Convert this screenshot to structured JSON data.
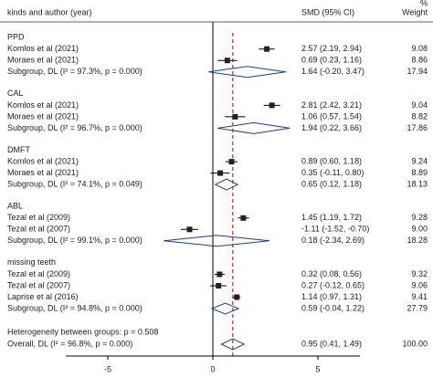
{
  "chart_data": {
    "type": "forest",
    "header": {
      "study": "kinds and author (year)",
      "effect": "SMD (95% CI)",
      "weight_unit": "%",
      "weight": "Weight"
    },
    "xlim": [
      -7,
      7
    ],
    "xticks": [
      -5,
      0,
      5
    ],
    "reference_line_color": "#c00000",
    "groups": [
      {
        "label": "PPD",
        "studies": [
          {
            "name": "Komlos et al (2021)",
            "values": [
              2.57,
              2.19,
              2.94
            ],
            "ci_label": "2.57 (2.19, 2.94)",
            "weight": "9.08"
          },
          {
            "name": "Moraes et al (2021)",
            "values": [
              0.69,
              0.23,
              1.16
            ],
            "ci_label": "0.69 (0.23, 1.16)",
            "weight": "8.86"
          }
        ],
        "subgroup": {
          "name": "Subgroup, DL (I² = 97.3%, p = 0.000)",
          "values": [
            1.64,
            -0.2,
            3.47
          ],
          "ci_label": "1.64 (-0.20, 3.47)",
          "weight": "17.94"
        }
      },
      {
        "label": "CAL",
        "studies": [
          {
            "name": "Komlos et al (2021)",
            "values": [
              2.81,
              2.42,
              3.21
            ],
            "ci_label": "2.81 (2.42, 3.21)",
            "weight": "9.04"
          },
          {
            "name": "Moraes et al (2021)",
            "values": [
              1.06,
              0.57,
              1.54
            ],
            "ci_label": "1.06 (0.57, 1.54)",
            "weight": "8.82"
          }
        ],
        "subgroup": {
          "name": "Subgroup, DL (I² = 96.7%, p = 0.000)",
          "values": [
            1.94,
            0.22,
            3.66
          ],
          "ci_label": "1.94 (0.22, 3.66)",
          "weight": "17.86"
        }
      },
      {
        "label": "DMFT",
        "studies": [
          {
            "name": "Komlos et al (2021)",
            "values": [
              0.89,
              0.6,
              1.18
            ],
            "ci_label": "0.89 (0.60, 1.18)",
            "weight": "9.24"
          },
          {
            "name": "Moraes et al (2021)",
            "values": [
              0.35,
              -0.11,
              0.8
            ],
            "ci_label": "0.35 (-0.11, 0.80)",
            "weight": "8.89"
          }
        ],
        "subgroup": {
          "name": "Subgroup, DL (I² = 74.1%, p = 0.049)",
          "values": [
            0.65,
            0.12,
            1.18
          ],
          "ci_label": "0.65 (0.12, 1.18)",
          "weight": "18.13"
        }
      },
      {
        "label": "ABL",
        "studies": [
          {
            "name": "Tezal et al (2009)",
            "values": [
              1.45,
              1.19,
              1.72
            ],
            "ci_label": "1.45 (1.19, 1.72)",
            "weight": "9.28"
          },
          {
            "name": "Tezal et al (2007)",
            "values": [
              -1.11,
              -1.52,
              -0.7
            ],
            "ci_label": "-1.11 (-1.52, -0.70)",
            "weight": "9.00"
          }
        ],
        "subgroup": {
          "name": "Subgroup, DL (I² = 99.1%, p = 0.000)",
          "values": [
            0.18,
            -2.34,
            2.69
          ],
          "ci_label": "0.18 (-2.34, 2.69)",
          "weight": "18.28"
        }
      },
      {
        "label": "missing teeth",
        "studies": [
          {
            "name": "Tezal et al (2009)",
            "values": [
              0.32,
              0.08,
              0.56
            ],
            "ci_label": "0.32 (0.08, 0.56)",
            "weight": "9.32"
          },
          {
            "name": "Tezal et al (2007)",
            "values": [
              0.27,
              -0.12,
              0.65
            ],
            "ci_label": "0.27 (-0.12, 0.65)",
            "weight": "9.06"
          },
          {
            "name": "Laprise et al (2016)",
            "values": [
              1.14,
              0.97,
              1.31
            ],
            "ci_label": "1.14 (0.97, 1.31)",
            "weight": "9.41"
          }
        ],
        "subgroup": {
          "name": "Subgroup, DL (I² = 94.8%, p = 0.000)",
          "values": [
            0.59,
            -0.04,
            1.22
          ],
          "ci_label": "0.59 (-0.04, 1.22)",
          "weight": "27.79"
        }
      }
    ],
    "heterogeneity": "Heterogeneity between groups: p = 0.508",
    "overall": {
      "name": "Overall, DL (I² = 96.8%, p = 0.000)",
      "values": [
        0.95,
        0.41,
        1.49
      ],
      "ci_label": "0.95 (0.41, 1.49)",
      "weight": "100.00"
    }
  }
}
